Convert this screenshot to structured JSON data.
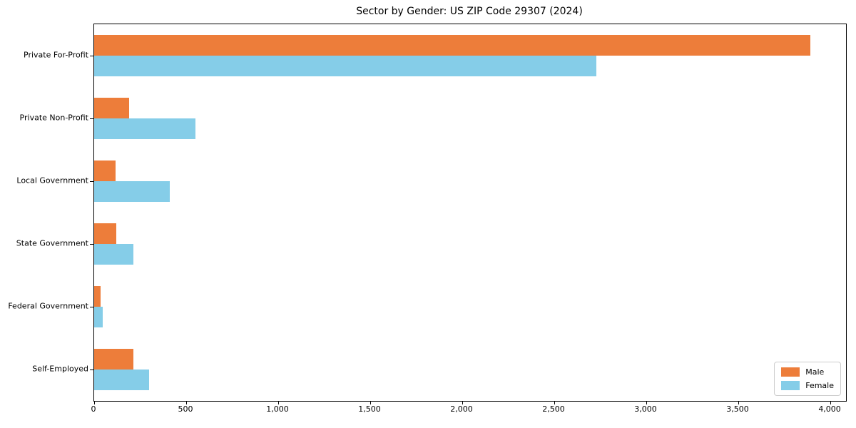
{
  "title": "Sector by Gender: US ZIP Code 29307 (2024)",
  "colors": {
    "male": "#ED7D3A",
    "female": "#85CDE8",
    "spine": "#000000",
    "legend_border": "#cccccc",
    "background": "#ffffff"
  },
  "legend": {
    "items": [
      {
        "label": "Male",
        "color_key": "male"
      },
      {
        "label": "Female",
        "color_key": "female"
      }
    ]
  },
  "chart_data": {
    "type": "bar",
    "orientation": "horizontal",
    "title": "Sector by Gender: US ZIP Code 29307 (2024)",
    "categories": [
      "Private For-Profit",
      "Private Non-Profit",
      "Local Government",
      "State Government",
      "Federal Government",
      "Self-Employed"
    ],
    "series": [
      {
        "name": "Male",
        "color": "#ED7D3A",
        "values": [
          3890,
          190,
          115,
          120,
          35,
          215
        ]
      },
      {
        "name": "Female",
        "color": "#85CDE8",
        "values": [
          2730,
          550,
          410,
          215,
          48,
          300
        ]
      }
    ],
    "xlabel": "",
    "ylabel": "",
    "xlim": [
      0,
      4085
    ],
    "xticks": [
      0,
      500,
      1000,
      1500,
      2000,
      2500,
      3000,
      3500,
      4000
    ],
    "xtick_labels": [
      "0",
      "500",
      "1,000",
      "1,500",
      "2,000",
      "2,500",
      "3,000",
      "3,500",
      "4,000"
    ],
    "grid": false,
    "legend_position": "lower right"
  }
}
